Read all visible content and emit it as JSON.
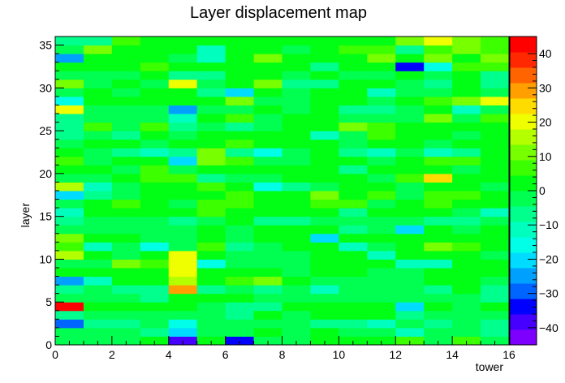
{
  "chart_data": {
    "type": "heatmap",
    "title": "Layer displacement map",
    "xlabel": "tower",
    "ylabel": "layer",
    "xlim": [
      0,
      16
    ],
    "ylim": [
      0,
      36
    ],
    "x_ticks": [
      "0",
      "2",
      "4",
      "6",
      "8",
      "10",
      "12",
      "14",
      "16"
    ],
    "y_ticks": [
      "0",
      "5",
      "10",
      "15",
      "20",
      "25",
      "30",
      "35"
    ],
    "z_range": [
      -45,
      45
    ],
    "colorbar_ticks": [
      "40",
      "30",
      "20",
      "10",
      "0",
      "−10",
      "−20",
      "−30",
      "−40"
    ],
    "colorbar_colors": [
      "#7d00ff",
      "#4600ff",
      "#0000ff",
      "#0064ff",
      "#00a0ff",
      "#00dcff",
      "#00ffe6",
      "#00ffbe",
      "#00ff8c",
      "#00ff50",
      "#00ff14",
      "#3cff00",
      "#78ff00",
      "#b4ff00",
      "#f0ff00",
      "#ffdc00",
      "#ffa000",
      "#ff6400",
      "#ff2800",
      "#ff0000"
    ],
    "grid": false,
    "values": [
      [
        -4,
        -4,
        -1,
        0,
        -40,
        2,
        -32,
        -1,
        -1,
        1,
        3,
        0,
        5,
        -2,
        6,
        -1
      ],
      [
        -4,
        -3,
        -4,
        -5,
        -21,
        -2,
        -1,
        0,
        -1,
        0,
        -3,
        -4,
        -11,
        -3,
        -2,
        -6
      ],
      [
        -31,
        -7,
        -7,
        -4,
        -14,
        -1,
        -1,
        -4,
        -1,
        -5,
        -7,
        -11,
        -2,
        -8,
        -3,
        -5
      ],
      [
        -8,
        -3,
        -2,
        -1,
        -2,
        -4,
        -7,
        0,
        -3,
        0,
        0,
        2,
        -9,
        -3,
        -2,
        -4
      ],
      [
        43,
        0,
        4,
        2,
        4,
        -4,
        -7,
        -8,
        0,
        0,
        0,
        2,
        -22,
        2,
        -1,
        3
      ],
      [
        -1,
        -3,
        -3,
        -8,
        0,
        4,
        0,
        -4,
        -4,
        -1,
        -3,
        -4,
        -2,
        -4,
        -3,
        -6
      ],
      [
        -6,
        -1,
        -6,
        -7,
        28,
        -9,
        -1,
        -5,
        -1,
        -10,
        -1,
        -4,
        -1,
        -5,
        0,
        -6
      ],
      [
        -23,
        -12,
        0,
        4,
        16,
        0,
        5,
        12,
        3,
        -1,
        -3,
        -1,
        -2,
        1,
        1,
        -2
      ],
      [
        2,
        0,
        4,
        1,
        18,
        3,
        4,
        3,
        -4,
        1,
        0,
        -2,
        -4,
        2,
        0,
        0
      ],
      [
        -1,
        -1,
        13,
        7,
        21,
        -15,
        -1,
        -2,
        -1,
        3,
        2,
        0,
        -13,
        -11,
        2,
        0
      ],
      [
        17,
        1,
        -1,
        4,
        22,
        0,
        -1,
        -2,
        -4,
        3,
        1,
        -11,
        1,
        2,
        0,
        -1
      ],
      [
        5,
        -12,
        -1,
        -15,
        -3,
        7,
        -5,
        -3,
        2,
        0,
        -13,
        -4,
        4,
        10,
        6,
        1
      ],
      [
        9,
        1,
        0,
        -2,
        -3,
        1,
        -4,
        2,
        1,
        -20,
        4,
        1,
        1,
        4,
        0,
        4
      ],
      [
        -1,
        -2,
        -1,
        -1,
        -1,
        0,
        -2,
        3,
        0,
        3,
        -6,
        -1,
        -20,
        2,
        -2,
        3
      ],
      [
        -6,
        -2,
        -2,
        -4,
        -6,
        -4,
        0,
        -6,
        -5,
        -1,
        -1,
        -4,
        -4,
        -6,
        -6,
        -1
      ],
      [
        -10,
        1,
        0,
        1,
        0,
        6,
        0,
        4,
        0,
        3,
        -7,
        1,
        2,
        1,
        -2,
        -11
      ],
      [
        -3,
        2,
        6,
        0,
        -1,
        5,
        6,
        1,
        0,
        7,
        5,
        -2,
        3,
        6,
        2,
        2
      ],
      [
        -22,
        -5,
        -2,
        2,
        0,
        0,
        6,
        0,
        0,
        11,
        2,
        6,
        -2,
        6,
        8,
        2
      ],
      [
        17,
        -10,
        -1,
        0,
        0,
        6,
        3,
        -14,
        -5,
        -2,
        4,
        3,
        -1,
        4,
        4,
        -2
      ],
      [
        -2,
        -1,
        0,
        5,
        7,
        -5,
        -1,
        -1,
        3,
        2,
        4,
        -1,
        7,
        23,
        0,
        0
      ],
      [
        0,
        2,
        -2,
        6,
        -3,
        2,
        1,
        4,
        2,
        2,
        -6,
        3,
        2,
        3,
        -1,
        2
      ],
      [
        5,
        -4,
        4,
        0,
        -20,
        10,
        5,
        -4,
        -3,
        0,
        3,
        -2,
        3,
        7,
        6,
        4
      ],
      [
        3,
        -4,
        -5,
        -13,
        -6,
        11,
        -6,
        -14,
        -2,
        1,
        -8,
        -12,
        -3,
        -12,
        -7,
        0
      ],
      [
        -1,
        0,
        3,
        -4,
        2,
        2,
        5,
        1,
        0,
        3,
        -3,
        3,
        0,
        -4,
        2,
        2
      ],
      [
        -5,
        -1,
        -6,
        0,
        -2,
        4,
        1,
        3,
        0,
        -11,
        -4,
        7,
        1,
        1,
        -2,
        2
      ],
      [
        -6,
        6,
        -3,
        7,
        -5,
        -3,
        -5,
        -1,
        3,
        4,
        9,
        5,
        3,
        2,
        3,
        0
      ],
      [
        -5,
        -4,
        -3,
        -2,
        -12,
        0,
        6,
        -4,
        0,
        0,
        -4,
        -4,
        -4,
        11,
        -4,
        6
      ],
      [
        18,
        -2,
        -2,
        -4,
        -25,
        -1,
        -4,
        0,
        -2,
        1,
        -8,
        -6,
        -2,
        0,
        -12,
        -4
      ],
      [
        -14,
        0,
        0,
        1,
        0,
        2,
        11,
        -1,
        -3,
        0,
        0,
        -4,
        3,
        5,
        9,
        20
      ],
      [
        -2,
        0,
        -2,
        0,
        1,
        -7,
        -21,
        0,
        -3,
        2,
        0,
        -10,
        -3,
        -3,
        0,
        -1
      ],
      [
        10,
        -3,
        3,
        -4,
        20,
        -2,
        0,
        13,
        -9,
        -5,
        3,
        0,
        -1,
        -6,
        3,
        -8
      ],
      [
        -1,
        -4,
        -4,
        0,
        -5,
        -8,
        0,
        0,
        -2,
        0,
        -2,
        -3,
        3,
        -3,
        4,
        -5
      ],
      [
        0,
        4,
        2,
        8,
        1,
        0,
        0,
        3,
        1,
        -7,
        2,
        0,
        -36,
        -17,
        5,
        5
      ],
      [
        -26,
        2,
        0,
        4,
        -1,
        -11,
        4,
        12,
        3,
        2,
        0,
        9,
        0,
        10,
        3,
        10
      ],
      [
        -4,
        12,
        3,
        4,
        0,
        -11,
        0,
        4,
        -1,
        0,
        5,
        8,
        -5,
        8,
        12,
        5
      ],
      [
        -6,
        -5,
        7,
        3,
        1,
        0,
        0,
        3,
        2,
        1,
        3,
        2,
        10,
        20,
        12,
        8
      ]
    ]
  }
}
